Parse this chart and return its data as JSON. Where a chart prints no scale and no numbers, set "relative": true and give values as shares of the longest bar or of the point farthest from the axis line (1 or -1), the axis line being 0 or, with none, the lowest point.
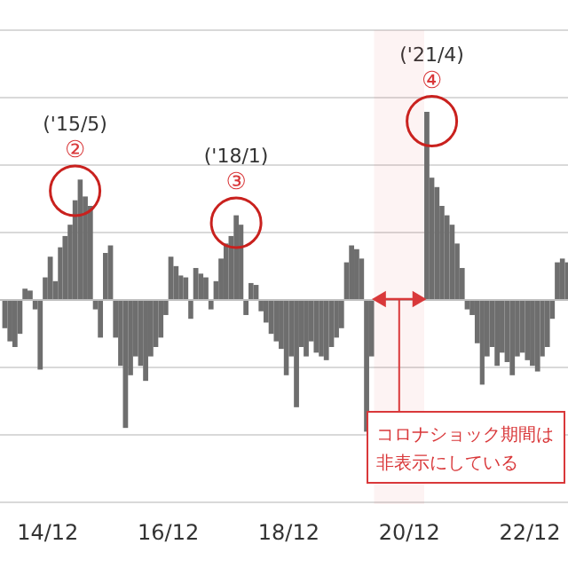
{
  "chart_data": {
    "type": "bar",
    "relative": true,
    "grid": true,
    "x": [
      "2014-03",
      "2014-04",
      "2014-05",
      "2014-06",
      "2014-07",
      "2014-08",
      "2014-09",
      "2014-10",
      "2014-11",
      "2014-12",
      "2015-01",
      "2015-02",
      "2015-03",
      "2015-04",
      "2015-05",
      "2015-06",
      "2015-07",
      "2015-08",
      "2015-09",
      "2015-10",
      "2015-11",
      "2015-12",
      "2016-01",
      "2016-02",
      "2016-03",
      "2016-04",
      "2016-05",
      "2016-06",
      "2016-07",
      "2016-08",
      "2016-09",
      "2016-10",
      "2016-11",
      "2016-12",
      "2017-01",
      "2017-02",
      "2017-03",
      "2017-04",
      "2017-05",
      "2017-06",
      "2017-07",
      "2017-08",
      "2017-09",
      "2017-10",
      "2017-11",
      "2017-12",
      "2018-01",
      "2018-02",
      "2018-03",
      "2018-04",
      "2018-05",
      "2018-06",
      "2018-07",
      "2018-08",
      "2018-09",
      "2018-10",
      "2018-11",
      "2018-12",
      "2019-01",
      "2019-02",
      "2019-03",
      "2019-04",
      "2019-05",
      "2019-06",
      "2019-07",
      "2019-08",
      "2019-09",
      "2019-10",
      "2019-11",
      "2019-12",
      "2020-01",
      "2020-02",
      "2020-03",
      "2020-04",
      "2021-03",
      "2021-04",
      "2021-05",
      "2021-06",
      "2021-07",
      "2021-08",
      "2021-09",
      "2021-10",
      "2021-11",
      "2021-12",
      "2022-01",
      "2022-02",
      "2022-03",
      "2022-04",
      "2022-05",
      "2022-06",
      "2022-07",
      "2022-08",
      "2022-09",
      "2022-10",
      "2022-11",
      "2022-12",
      "2023-01",
      "2023-02",
      "2023-03",
      "2023-04",
      "2023-05",
      "2023-06",
      "2023-07"
    ],
    "series": [
      {
        "color": "#6e6e6e",
        "values": [
          -0.15,
          -0.22,
          -0.25,
          -0.18,
          0.06,
          0.05,
          -0.05,
          -0.37,
          0.12,
          0.23,
          0.1,
          0.28,
          0.34,
          0.4,
          0.53,
          0.64,
          0.55,
          0.5,
          -0.05,
          -0.2,
          0.25,
          0.29,
          -0.2,
          -0.35,
          -0.68,
          -0.4,
          -0.3,
          -0.35,
          -0.43,
          -0.3,
          -0.25,
          -0.2,
          -0.08,
          0.23,
          0.18,
          0.13,
          0.12,
          -0.1,
          0.17,
          0.14,
          0.12,
          -0.05,
          0.1,
          0.22,
          0.3,
          0.34,
          0.45,
          0.4,
          -0.08,
          0.09,
          0.08,
          -0.06,
          -0.12,
          -0.18,
          -0.22,
          -0.26,
          -0.4,
          -0.3,
          -0.57,
          -0.25,
          -0.3,
          -0.22,
          -0.28,
          -0.3,
          -0.32,
          -0.25,
          -0.2,
          -0.15,
          0.2,
          0.29,
          0.27,
          0.22,
          -0.7,
          -0.3,
          1.0,
          0.65,
          0.6,
          0.5,
          0.45,
          0.4,
          0.3,
          0.17,
          -0.05,
          -0.08,
          -0.23,
          -0.45,
          -0.3,
          -0.25,
          -0.35,
          -0.28,
          -0.33,
          -0.4,
          -0.3,
          -0.28,
          -0.32,
          -0.35,
          -0.38,
          -0.3,
          -0.25,
          -0.1,
          0.2,
          0.22,
          0.2
        ]
      }
    ],
    "xlim": [
      "2014-02-15",
      "2023-07-20"
    ],
    "xticks": [
      {
        "value": "2014-12",
        "label": "14/12"
      },
      {
        "value": "2016-12",
        "label": "16/12"
      },
      {
        "value": "2018-12",
        "label": "18/12"
      },
      {
        "value": "2020-12",
        "label": "20/12"
      },
      {
        "value": "2022-12",
        "label": "22/12"
      }
    ],
    "annotations": [
      {
        "text": "('15/5)\n②",
        "x": "2015-05",
        "y": 0.58
      },
      {
        "text": "('18/1)\n③",
        "x": "2018-01",
        "y": 0.41
      },
      {
        "text": "('21/4)\n④",
        "x": "2021-04",
        "y": 0.95
      }
    ],
    "bands": [
      {
        "axis": "x",
        "from": "2020-05",
        "to": "2021-03",
        "label": "コロナショック期間は非表示にしている",
        "color": "#d9383a"
      }
    ]
  }
}
